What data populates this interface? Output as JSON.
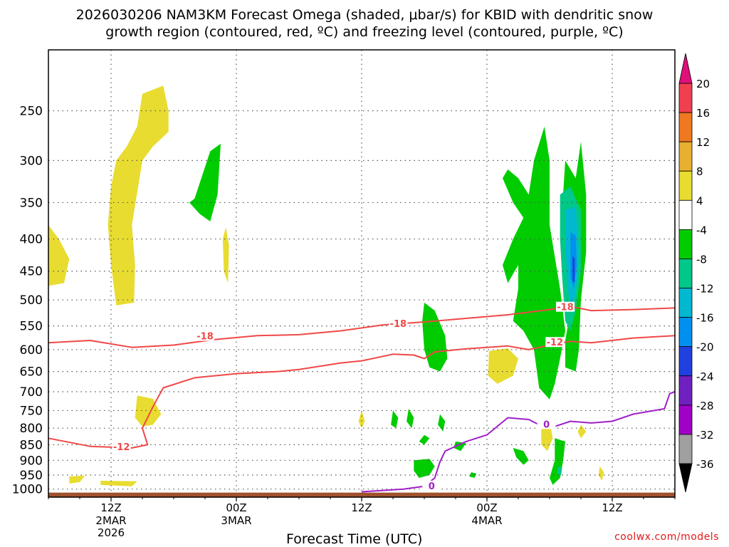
{
  "title_line1": "2026030206 NAM3KM Forecast Omega (shaded, μbar/s) for KBID with dendritic snow",
  "title_line2": "growth region (contoured, red, ºC) and freezing level (contoured, purple, ºC)",
  "credit": "coolwx.com/models",
  "chart_data": {
    "type": "contour",
    "title": "2026030206 NAM3KM Forecast Omega (shaded, μbar/s) for KBID with dendritic snow growth region (contoured, red, ºC) and freezing level (contoured, purple, ºC)",
    "xlabel": "Forecast Time (UTC)",
    "ylabel": "",
    "x_ticks": [
      {
        "label": "12Z",
        "sub": [
          "2MAR",
          "2026"
        ],
        "hour": 6
      },
      {
        "label": "00Z",
        "sub": [
          "3MAR"
        ],
        "hour": 18
      },
      {
        "label": "12Z",
        "sub": [],
        "hour": 30
      },
      {
        "label": "00Z",
        "sub": [
          "4MAR"
        ],
        "hour": 42
      },
      {
        "label": "12Z",
        "sub": [],
        "hour": 54
      }
    ],
    "x_range_hours": [
      0,
      60
    ],
    "y_scale": "log-pressure",
    "y_ticks": [
      250,
      300,
      350,
      400,
      450,
      500,
      550,
      600,
      650,
      700,
      750,
      800,
      850,
      900,
      950,
      1000
    ],
    "y_range_mb": [
      1030,
      200
    ],
    "grid": true,
    "colorbar": {
      "labels": [
        "20",
        "16",
        "12",
        "8",
        "4",
        "-4",
        "-8",
        "-12",
        "-16",
        "-20",
        "-24",
        "-28",
        "-32",
        "-36"
      ],
      "colors": [
        "#f04050",
        "#f07820",
        "#e8b030",
        "#e8dc30",
        "#ffffff",
        "#00cc00",
        "#00c888",
        "#00b8d0",
        "#0090f0",
        "#2040e0",
        "#7020c0",
        "#a000c8",
        "#a0a0a0"
      ],
      "top_arrow_color": "#e0107a",
      "bottom_arrow_color": "#000000"
    },
    "contour_labels": {
      "dgz_upper": "-18",
      "dgz_lower": "-12",
      "freezing": "0"
    },
    "series": [
      {
        "role": "-18C isotherm",
        "color": "#f04848",
        "points": [
          [
            0,
            585
          ],
          [
            4,
            580
          ],
          [
            8,
            595
          ],
          [
            12,
            590
          ],
          [
            16,
            578
          ],
          [
            20,
            570
          ],
          [
            24,
            568
          ],
          [
            28,
            560
          ],
          [
            32,
            548
          ],
          [
            36,
            542
          ],
          [
            40,
            535
          ],
          [
            44,
            528
          ],
          [
            48,
            518
          ],
          [
            50,
            512
          ],
          [
            52,
            520
          ],
          [
            56,
            518
          ],
          [
            60,
            515
          ]
        ]
      },
      {
        "role": "-12C isotherm",
        "color": "#f04848",
        "points": [
          [
            0,
            830
          ],
          [
            4,
            855
          ],
          [
            8,
            860
          ],
          [
            9.5,
            850
          ],
          [
            9,
            800
          ],
          [
            10,
            740
          ],
          [
            11,
            690
          ],
          [
            14,
            665
          ],
          [
            18,
            655
          ],
          [
            22,
            650
          ],
          [
            24,
            645
          ],
          [
            28,
            630
          ],
          [
            30,
            625
          ],
          [
            33,
            610
          ],
          [
            35,
            612
          ],
          [
            36,
            620
          ],
          [
            37,
            605
          ],
          [
            40,
            598
          ],
          [
            44,
            592
          ],
          [
            46,
            600
          ],
          [
            48,
            590
          ],
          [
            50,
            582
          ],
          [
            52,
            585
          ],
          [
            56,
            575
          ],
          [
            60,
            570
          ]
        ]
      },
      {
        "role": "0C freezing level",
        "color": "#a020c8",
        "points": [
          [
            30,
            1010
          ],
          [
            34,
            1000
          ],
          [
            36,
            990
          ],
          [
            37,
            960
          ],
          [
            37.5,
            905
          ],
          [
            38,
            870
          ],
          [
            40,
            840
          ],
          [
            42,
            820
          ],
          [
            44,
            770
          ],
          [
            46,
            775
          ],
          [
            47,
            790
          ],
          [
            48,
            800
          ],
          [
            50,
            780
          ],
          [
            52,
            785
          ],
          [
            54,
            780
          ],
          [
            56,
            760
          ],
          [
            59,
            745
          ],
          [
            59.5,
            705
          ],
          [
            60,
            700
          ]
        ]
      }
    ],
    "shaded_areas": [
      {
        "fill": "#e8dc30",
        "label": "4 to 8 ubar/s",
        "points": [
          [
            0,
            380
          ],
          [
            1,
            400
          ],
          [
            2,
            430
          ],
          [
            1.5,
            470
          ],
          [
            0,
            475
          ]
        ]
      },
      {
        "fill": "#e8dc30",
        "label": "4 to 8 ubar/s",
        "points": [
          [
            9,
            235
          ],
          [
            11,
            228
          ],
          [
            11.5,
            250
          ],
          [
            11.5,
            270
          ],
          [
            10,
            285
          ],
          [
            9,
            300
          ],
          [
            8,
            380
          ],
          [
            8.3,
            440
          ],
          [
            8.2,
            505
          ],
          [
            6.5,
            510
          ],
          [
            6,
            440
          ],
          [
            5.7,
            380
          ],
          [
            6,
            330
          ],
          [
            6.5,
            300
          ],
          [
            7.5,
            285
          ],
          [
            8.5,
            265
          ]
        ]
      },
      {
        "fill": "#e8dc30",
        "label": "4 to 8 ubar/s",
        "points": [
          [
            8.5,
            710
          ],
          [
            10,
            718
          ],
          [
            10.8,
            760
          ],
          [
            10,
            790
          ],
          [
            9,
            795
          ],
          [
            8.3,
            770
          ]
        ]
      },
      {
        "fill": "#e8dc30",
        "label": "4 to 8 ubar/s",
        "points": [
          [
            2,
            955
          ],
          [
            3.5,
            952
          ],
          [
            3,
            975
          ],
          [
            2,
            980
          ]
        ]
      },
      {
        "fill": "#e8dc30",
        "label": "4 to 8 ubar/s",
        "points": [
          [
            5,
            970
          ],
          [
            8.5,
            972
          ],
          [
            8,
            990
          ],
          [
            5,
            985
          ]
        ]
      },
      {
        "fill": "#e8dc30",
        "label": "4 to 8 ubar/s",
        "points": [
          [
            17,
            383
          ],
          [
            17.3,
            410
          ],
          [
            17.2,
            470
          ],
          [
            16.8,
            450
          ],
          [
            16.7,
            400
          ]
        ]
      },
      {
        "fill": "#e8dc30",
        "label": "4 to 8 ubar/s",
        "points": [
          [
            42.2,
            603
          ],
          [
            44,
            597
          ],
          [
            45,
            620
          ],
          [
            44.5,
            660
          ],
          [
            43,
            680
          ],
          [
            42.1,
            660
          ]
        ]
      },
      {
        "fill": "#e8dc30",
        "label": "4 to 8 ubar/s",
        "points": [
          [
            47.2,
            790
          ],
          [
            48,
            780
          ],
          [
            48.3,
            830
          ],
          [
            47.8,
            870
          ],
          [
            47.2,
            850
          ]
        ]
      },
      {
        "fill": "#e8dc30",
        "label": "4 to 8 ubar/s",
        "points": [
          [
            30,
            750
          ],
          [
            30.3,
            780
          ],
          [
            30,
            800
          ],
          [
            29.7,
            780
          ]
        ]
      },
      {
        "fill": "#e8dc30",
        "label": "4 to 8 ubar/s",
        "points": [
          [
            51,
            790
          ],
          [
            51.5,
            810
          ],
          [
            51,
            830
          ],
          [
            50.7,
            810
          ]
        ]
      },
      {
        "fill": "#e8dc30",
        "label": "4 to 8 ubar/s",
        "points": [
          [
            52.8,
            920
          ],
          [
            53.2,
            940
          ],
          [
            53,
            970
          ],
          [
            52.7,
            950
          ]
        ]
      },
      {
        "fill": "#00cc00",
        "label": "-8 to -4 ubar/s",
        "points": [
          [
            15.5,
            290
          ],
          [
            16.5,
            282
          ],
          [
            16.2,
            340
          ],
          [
            15.5,
            375
          ],
          [
            14.5,
            365
          ],
          [
            13.5,
            350
          ],
          [
            14,
            345
          ]
        ]
      },
      {
        "fill": "#00cc00",
        "label": "-8 to -4 ubar/s",
        "points": [
          [
            36,
            505
          ],
          [
            37,
            520
          ],
          [
            38,
            570
          ],
          [
            38.2,
            620
          ],
          [
            37.5,
            650
          ],
          [
            36.5,
            640
          ],
          [
            36,
            600
          ],
          [
            35.8,
            540
          ]
        ]
      },
      {
        "fill": "#00cc00",
        "label": "-8 to -4 ubar/s",
        "points": [
          [
            44,
            310
          ],
          [
            45,
            320
          ],
          [
            46,
            340
          ],
          [
            46.5,
            300
          ],
          [
            47.5,
            265
          ],
          [
            48,
            300
          ],
          [
            48,
            380
          ],
          [
            49,
            480
          ],
          [
            49.5,
            560
          ],
          [
            49,
            620
          ],
          [
            48.5,
            680
          ],
          [
            48,
            720
          ],
          [
            47,
            690
          ],
          [
            46.5,
            600
          ],
          [
            45.5,
            560
          ],
          [
            44.5,
            540
          ],
          [
            45,
            480
          ],
          [
            45,
            440
          ],
          [
            44,
            470
          ],
          [
            43.5,
            440
          ],
          [
            44.5,
            400
          ],
          [
            45.5,
            370
          ],
          [
            44.5,
            350
          ],
          [
            43.5,
            320
          ]
        ]
      },
      {
        "fill": "#00cc00",
        "label": "-8 to -4 ubar/s",
        "points": [
          [
            49.5,
            300
          ],
          [
            50.5,
            320
          ],
          [
            51,
            280
          ],
          [
            51.5,
            340
          ],
          [
            51.5,
            420
          ],
          [
            51,
            500
          ],
          [
            50.8,
            600
          ],
          [
            50.5,
            650
          ],
          [
            49.5,
            640
          ],
          [
            49.5,
            580
          ],
          [
            50,
            520
          ],
          [
            49.5,
            420
          ],
          [
            49.2,
            360
          ]
        ]
      },
      {
        "fill": "#00cc00",
        "label": "-8 to -4 ubar/s",
        "points": [
          [
            33,
            750
          ],
          [
            33.5,
            770
          ],
          [
            33.3,
            800
          ],
          [
            32.8,
            790
          ]
        ]
      },
      {
        "fill": "#00cc00",
        "label": "-8 to -4 ubar/s",
        "points": [
          [
            34.5,
            745
          ],
          [
            35,
            770
          ],
          [
            34.8,
            800
          ],
          [
            34.3,
            780
          ]
        ]
      },
      {
        "fill": "#00cc00",
        "label": "-8 to -4 ubar/s",
        "points": [
          [
            36,
            820
          ],
          [
            36.5,
            830
          ],
          [
            36,
            850
          ],
          [
            35.5,
            840
          ]
        ]
      },
      {
        "fill": "#00cc00",
        "label": "-8 to -4 ubar/s",
        "points": [
          [
            37.5,
            760
          ],
          [
            38,
            780
          ],
          [
            37.8,
            810
          ],
          [
            37.3,
            790
          ]
        ]
      },
      {
        "fill": "#00cc00",
        "label": "-8 to -4 ubar/s",
        "points": [
          [
            35,
            900
          ],
          [
            36.5,
            895
          ],
          [
            37,
            920
          ],
          [
            36.5,
            950
          ],
          [
            35.5,
            960
          ],
          [
            35,
            935
          ]
        ]
      },
      {
        "fill": "#00cc00",
        "label": "-8 to -4 ubar/s",
        "points": [
          [
            39,
            840
          ],
          [
            40,
            845
          ],
          [
            39.5,
            870
          ],
          [
            38.8,
            860
          ]
        ]
      },
      {
        "fill": "#00cc00",
        "label": "-8 to -4 ubar/s",
        "points": [
          [
            40.5,
            940
          ],
          [
            41,
            945
          ],
          [
            40.8,
            960
          ],
          [
            40.3,
            955
          ]
        ]
      },
      {
        "fill": "#00cc00",
        "label": "-8 to -4 ubar/s",
        "points": [
          [
            44.5,
            860
          ],
          [
            45.5,
            870
          ],
          [
            46,
            900
          ],
          [
            45.5,
            915
          ],
          [
            44.8,
            890
          ]
        ]
      },
      {
        "fill": "#00cc00",
        "label": "-8 to -4 ubar/s",
        "points": [
          [
            48.5,
            830
          ],
          [
            49.5,
            840
          ],
          [
            49.3,
            900
          ],
          [
            49,
            960
          ],
          [
            48.3,
            985
          ],
          [
            48,
            960
          ],
          [
            48.5,
            900
          ]
        ]
      },
      {
        "fill": "#00c888",
        "label": "-12 to -8 ubar/s",
        "points": [
          [
            49,
            340
          ],
          [
            50,
            330
          ],
          [
            51,
            360
          ],
          [
            51,
            450
          ],
          [
            50.5,
            520
          ],
          [
            50,
            560
          ],
          [
            49.5,
            540
          ],
          [
            49.2,
            460
          ],
          [
            49,
            400
          ]
        ]
      },
      {
        "fill": "#00c888",
        "label": "-12 to -8 ubar/s",
        "points": [
          [
            48.8,
            920
          ],
          [
            49.2,
            925
          ],
          [
            49.1,
            950
          ],
          [
            48.7,
            945
          ]
        ]
      },
      {
        "fill": "#00b8d0",
        "label": "-16 to -12 ubar/s",
        "points": [
          [
            49.5,
            360
          ],
          [
            50.5,
            355
          ],
          [
            50.8,
            420
          ],
          [
            50.5,
            490
          ],
          [
            50,
            520
          ],
          [
            49.7,
            470
          ],
          [
            49.5,
            410
          ]
        ]
      },
      {
        "fill": "#0090f0",
        "label": "-20 to -16 ubar/s",
        "points": [
          [
            50,
            390
          ],
          [
            50.5,
            395
          ],
          [
            50.6,
            440
          ],
          [
            50.3,
            480
          ],
          [
            50,
            460
          ]
        ]
      },
      {
        "fill": "#2040e0",
        "label": "-24 to -20 ubar/s",
        "points": [
          [
            50.2,
            425
          ],
          [
            50.4,
            430
          ],
          [
            50.4,
            470
          ],
          [
            50.2,
            465
          ]
        ]
      }
    ]
  }
}
